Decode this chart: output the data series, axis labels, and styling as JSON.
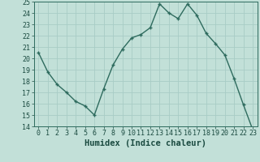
{
  "x": [
    0,
    1,
    2,
    3,
    4,
    5,
    6,
    7,
    8,
    9,
    10,
    11,
    12,
    13,
    14,
    15,
    16,
    17,
    18,
    19,
    20,
    21,
    22,
    23
  ],
  "y": [
    20.5,
    18.8,
    17.7,
    17.0,
    16.2,
    15.8,
    15.0,
    17.3,
    19.4,
    20.8,
    21.8,
    22.1,
    22.7,
    24.8,
    24.0,
    23.5,
    24.8,
    23.8,
    22.2,
    21.3,
    20.3,
    18.2,
    15.9,
    13.7
  ],
  "line_color": "#2e6b5e",
  "marker": "+",
  "bg_color": "#c2e0d8",
  "grid_color": "#a8ccc6",
  "xlabel": "Humidex (Indice chaleur)",
  "xlim": [
    -0.5,
    23.5
  ],
  "ylim": [
    14,
    25
  ],
  "yticks": [
    14,
    15,
    16,
    17,
    18,
    19,
    20,
    21,
    22,
    23,
    24,
    25
  ],
  "xticks": [
    0,
    1,
    2,
    3,
    4,
    5,
    6,
    7,
    8,
    9,
    10,
    11,
    12,
    13,
    14,
    15,
    16,
    17,
    18,
    19,
    20,
    21,
    22,
    23
  ],
  "xlabel_color": "#1a4a40",
  "tick_color": "#1a4a40",
  "axis_color": "#2e6b5e",
  "xlabel_fontsize": 7.5,
  "tick_fontsize": 6.0,
  "line_width": 1.0,
  "marker_size": 3.5,
  "marker_edge_width": 1.0
}
